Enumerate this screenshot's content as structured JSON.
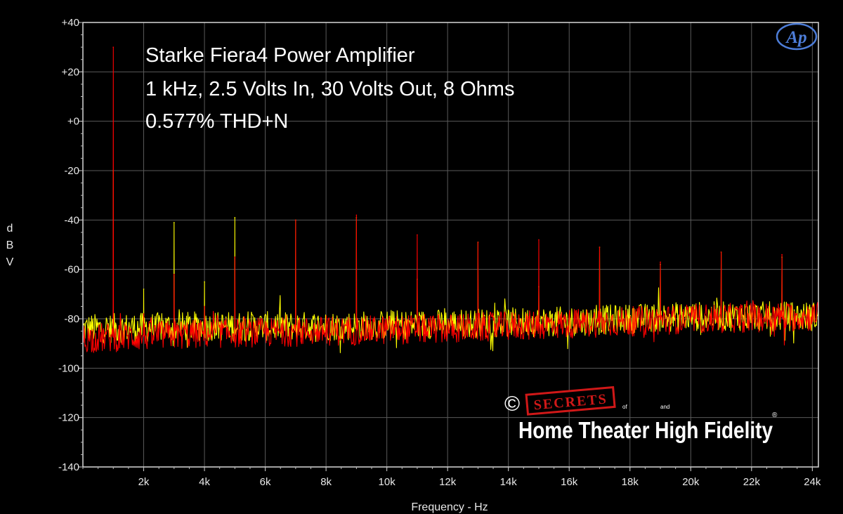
{
  "chart_data": {
    "type": "line",
    "title_lines": [
      "Starke Fiera4 Power Amplifier",
      "1 kHz, 2.5 Volts In, 30 Volts Out, 8 Ohms",
      "0.577% THD+N"
    ],
    "xlabel": "Frequency - Hz",
    "ylabel": "dBV",
    "xlim": [
      0,
      24200
    ],
    "ylim": [
      -140,
      40
    ],
    "grid": true,
    "x_tick_values": [
      2000,
      4000,
      6000,
      8000,
      10000,
      12000,
      14000,
      16000,
      18000,
      20000,
      22000,
      24000
    ],
    "x_tick_labels": [
      "2k",
      "4k",
      "6k",
      "8k",
      "10k",
      "12k",
      "14k",
      "16k",
      "18k",
      "20k",
      "22k",
      "24k"
    ],
    "y_tick_values": [
      40,
      20,
      0,
      -20,
      -40,
      -60,
      -80,
      -100,
      -120,
      -140
    ],
    "y_tick_labels": [
      "+40",
      "+20",
      "+0",
      "-20",
      "-40",
      "-60",
      "-80",
      "-100",
      "-120",
      "-140"
    ],
    "series": [
      {
        "color": "#ffff00",
        "noise_floor": [
          [
            0,
            -84
          ],
          [
            4000,
            -83
          ],
          [
            8000,
            -83
          ],
          [
            12000,
            -82
          ],
          [
            16000,
            -81
          ],
          [
            20000,
            -79
          ],
          [
            24200,
            -79
          ]
        ],
        "peaks": [
          {
            "x": 1000,
            "y": -20
          },
          {
            "x": 2000,
            "y": -68
          },
          {
            "x": 3000,
            "y": -41
          },
          {
            "x": 4000,
            "y": -65
          },
          {
            "x": 5000,
            "y": -39
          },
          {
            "x": 7000,
            "y": -40
          },
          {
            "x": 9000,
            "y": -39
          },
          {
            "x": 11000,
            "y": -64
          },
          {
            "x": 13000,
            "y": -49
          },
          {
            "x": 15000,
            "y": -67
          },
          {
            "x": 17000,
            "y": -51
          },
          {
            "x": 19000,
            "y": -58
          },
          {
            "x": 21000,
            "y": -53
          },
          {
            "x": 23000,
            "y": -55
          }
        ]
      },
      {
        "color": "#ff0000",
        "noise_floor": [
          [
            0,
            -88
          ],
          [
            4000,
            -86
          ],
          [
            8000,
            -85
          ],
          [
            12000,
            -84
          ],
          [
            16000,
            -82
          ],
          [
            20000,
            -80
          ],
          [
            24200,
            -79
          ]
        ],
        "peaks": [
          {
            "x": 1000,
            "y": 30
          },
          {
            "x": 2000,
            "y": -78
          },
          {
            "x": 3000,
            "y": -62
          },
          {
            "x": 4000,
            "y": -75
          },
          {
            "x": 5000,
            "y": -55
          },
          {
            "x": 7000,
            "y": -40
          },
          {
            "x": 9000,
            "y": -38
          },
          {
            "x": 11000,
            "y": -46
          },
          {
            "x": 13000,
            "y": -49
          },
          {
            "x": 15000,
            "y": -48
          },
          {
            "x": 17000,
            "y": -51
          },
          {
            "x": 19000,
            "y": -57
          },
          {
            "x": 21000,
            "y": -53
          },
          {
            "x": 23000,
            "y": -54
          }
        ]
      }
    ]
  },
  "logos": {
    "ap_text": "Ap",
    "copyright_symbol": "©",
    "secrets_text": "SECRETS",
    "of_text": "of",
    "and_text": "and",
    "brand_text": "Home Theater High Fidelity",
    "registered_symbol": "®"
  }
}
